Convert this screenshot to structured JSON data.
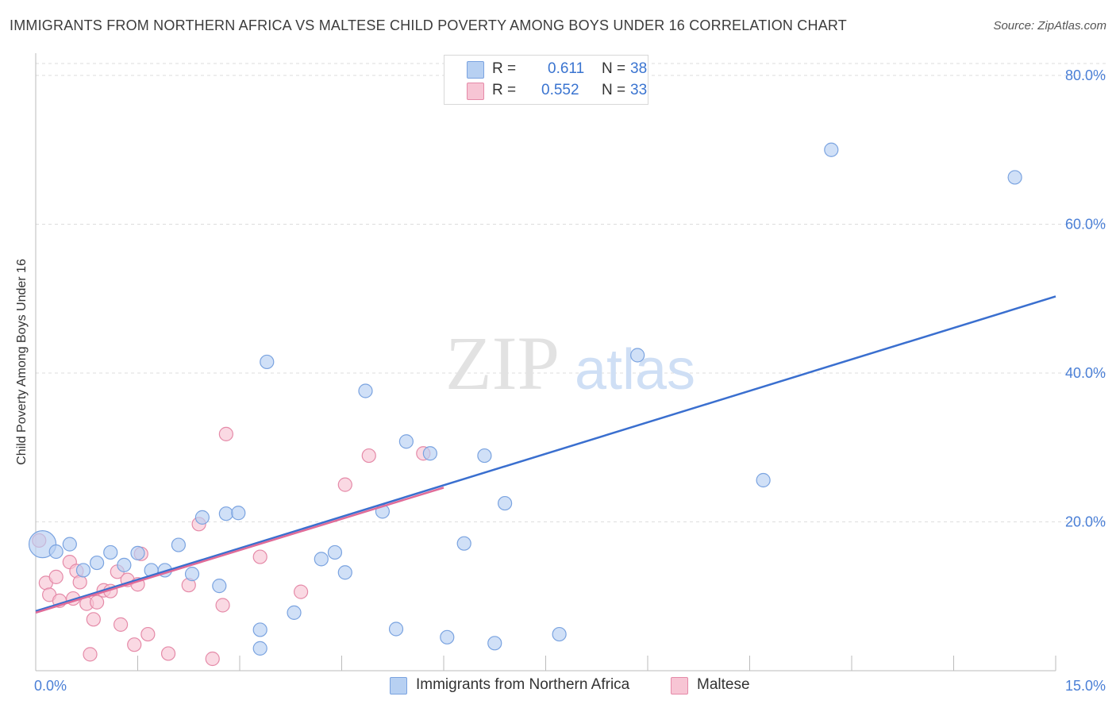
{
  "header": {
    "title": "IMMIGRANTS FROM NORTHERN AFRICA VS MALTESE CHILD POVERTY AMONG BOYS UNDER 16 CORRELATION CHART",
    "source": "Source: ZipAtlas.com"
  },
  "watermark": {
    "zip": "ZIP",
    "atlas": "atlas"
  },
  "legend": {
    "rows": [
      {
        "r_label": "R =",
        "r_value": "0.611",
        "n_label": "N =",
        "n_value": "38"
      },
      {
        "r_label": "R =",
        "r_value": "0.552",
        "n_label": "N =",
        "n_value": "33"
      }
    ]
  },
  "colors": {
    "blue_fill": "#b7d0f2",
    "blue_stroke": "#7aa3e0",
    "blue_line": "#3a6fcf",
    "pink_fill": "#f7c5d4",
    "pink_stroke": "#e58aa8",
    "pink_line": "#e06b98",
    "grid": "#dddddd",
    "tick_text": "#4a7fd6"
  },
  "chart_data": {
    "type": "scatter",
    "title": "IMMIGRANTS FROM NORTHERN AFRICA VS MALTESE CHILD POVERTY AMONG BOYS UNDER 16 CORRELATION CHART",
    "xlabel": "",
    "ylabel": "Child Poverty Among Boys Under 16",
    "xlim": [
      0,
      15
    ],
    "ylim": [
      0,
      80
    ],
    "x_tick_labels": [
      "0.0%",
      "15.0%"
    ],
    "y_ticks": [
      20,
      40,
      60,
      80
    ],
    "y_tick_labels": [
      "20.0%",
      "40.0%",
      "60.0%",
      "80.0%"
    ],
    "legend_position": "top-center",
    "series": [
      {
        "name": "Immigrants from Northern Africa",
        "color": "#b7d0f2",
        "r": "0.611",
        "n": "38",
        "trend": {
          "x": [
            0,
            15
          ],
          "y": [
            8.0,
            50.3
          ]
        },
        "points": [
          [
            0.1,
            17.0,
            "big"
          ],
          [
            0.3,
            16.0
          ],
          [
            0.5,
            17.0
          ],
          [
            0.7,
            13.5
          ],
          [
            0.9,
            14.5
          ],
          [
            1.1,
            15.9
          ],
          [
            1.3,
            14.2
          ],
          [
            1.5,
            15.8
          ],
          [
            1.7,
            13.5
          ],
          [
            1.9,
            13.5
          ],
          [
            2.1,
            16.9
          ],
          [
            2.3,
            13.0
          ],
          [
            2.45,
            20.6
          ],
          [
            2.7,
            11.4
          ],
          [
            2.8,
            21.1
          ],
          [
            2.98,
            21.2
          ],
          [
            3.3,
            5.5
          ],
          [
            3.3,
            3.0
          ],
          [
            3.4,
            41.5
          ],
          [
            3.8,
            7.8
          ],
          [
            4.2,
            15.0
          ],
          [
            4.4,
            15.9
          ],
          [
            4.55,
            13.2
          ],
          [
            4.85,
            37.6
          ],
          [
            5.1,
            21.4
          ],
          [
            5.3,
            5.6
          ],
          [
            5.45,
            30.8
          ],
          [
            5.8,
            29.2
          ],
          [
            6.05,
            4.5
          ],
          [
            6.3,
            17.1
          ],
          [
            6.6,
            28.9
          ],
          [
            6.75,
            3.7
          ],
          [
            6.9,
            22.5
          ],
          [
            7.7,
            4.9
          ],
          [
            8.85,
            42.4
          ],
          [
            10.7,
            25.6
          ],
          [
            11.7,
            70.0
          ],
          [
            14.4,
            66.3
          ]
        ]
      },
      {
        "name": "Maltese",
        "color": "#f7c5d4",
        "r": "0.552",
        "n": "33",
        "trend": {
          "x": [
            0,
            6
          ],
          "y": [
            7.8,
            24.6
          ]
        },
        "points": [
          [
            0.05,
            17.5
          ],
          [
            0.15,
            11.8
          ],
          [
            0.2,
            10.2
          ],
          [
            0.3,
            12.6
          ],
          [
            0.35,
            9.4
          ],
          [
            0.5,
            14.6
          ],
          [
            0.55,
            9.7
          ],
          [
            0.6,
            13.4
          ],
          [
            0.65,
            11.9
          ],
          [
            0.75,
            9.0
          ],
          [
            0.8,
            2.2
          ],
          [
            0.85,
            6.9
          ],
          [
            0.9,
            9.2
          ],
          [
            1.0,
            10.8
          ],
          [
            1.1,
            10.7
          ],
          [
            1.2,
            13.3
          ],
          [
            1.25,
            6.2
          ],
          [
            1.35,
            12.2
          ],
          [
            1.45,
            3.5
          ],
          [
            1.5,
            11.6
          ],
          [
            1.55,
            15.7
          ],
          [
            1.65,
            4.9
          ],
          [
            1.95,
            2.3
          ],
          [
            2.25,
            11.5
          ],
          [
            2.4,
            19.7
          ],
          [
            2.6,
            1.6
          ],
          [
            2.75,
            8.8
          ],
          [
            2.8,
            31.8
          ],
          [
            3.3,
            15.3
          ],
          [
            3.9,
            10.6
          ],
          [
            4.55,
            25.0
          ],
          [
            4.9,
            28.9
          ],
          [
            5.7,
            29.2
          ]
        ]
      }
    ]
  }
}
